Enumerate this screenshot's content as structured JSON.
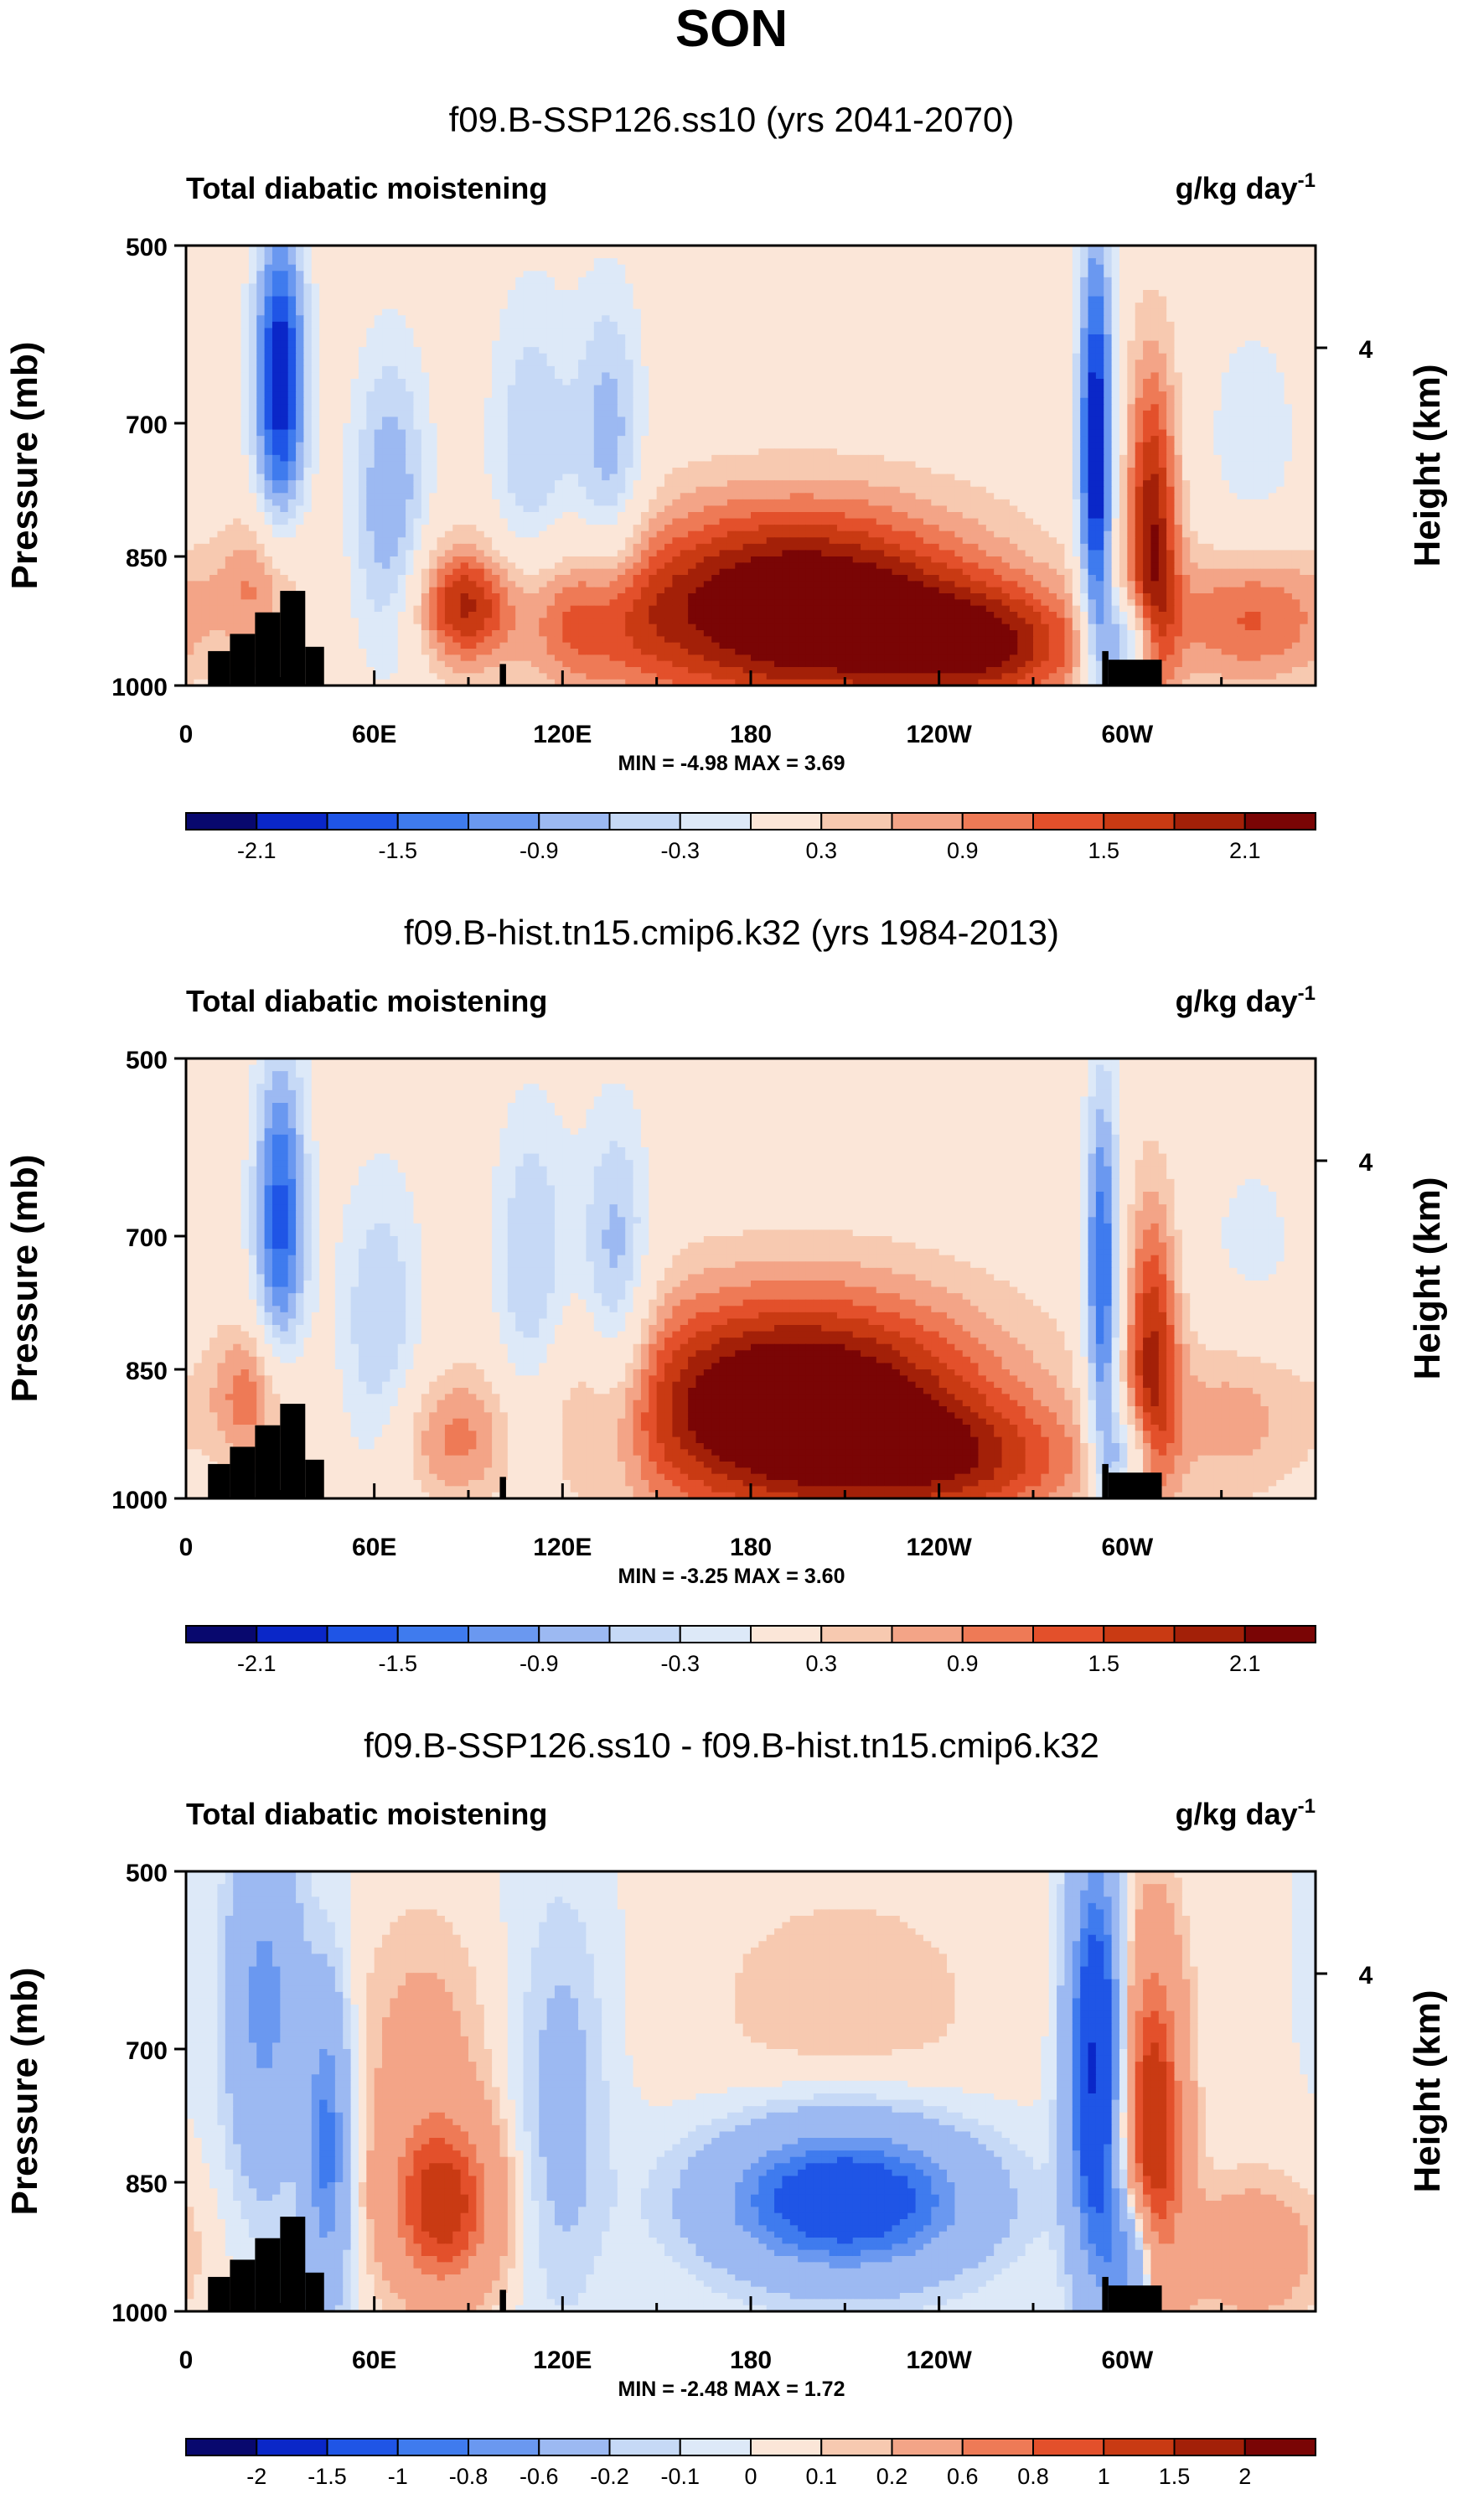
{
  "page_title": "SON",
  "colors": {
    "negative": [
      "#08086e",
      "#0a27c8",
      "#1f55e6",
      "#3f7bee",
      "#6a98f0",
      "#9cb9f2",
      "#c6d9f6",
      "#dde9f8"
    ],
    "positive": [
      "#fbe6d8",
      "#f7c9b0",
      "#f3a487",
      "#ee7a56",
      "#e3502b",
      "#c93a13",
      "#a32008",
      "#7a0505"
    ],
    "topography": "#000000"
  },
  "chart_data": [
    {
      "type": "heatmap",
      "title": "f09.B-SSP126.ss10 (yrs 2041-2070)",
      "left_label": "Total diabatic moistening",
      "units": "g/kg day",
      "units_exponent": "-1",
      "ylabel": "Pressure (mb)",
      "right_ylabel": "Height (km)",
      "right_ticks": [
        "4"
      ],
      "y_ticks": [
        "500",
        "700",
        "850",
        "1000"
      ],
      "x_ticks": [
        "0",
        "60E",
        "120E",
        "180",
        "120W",
        "60W"
      ],
      "min_label": "MIN =",
      "min_value": "-4.98",
      "max_label": "MAX =",
      "max_value": "3.69",
      "colorbar_labels": [
        "-2.1",
        "-1.5",
        "-0.9",
        "-0.3",
        "0.3",
        "0.9",
        "1.5",
        "2.1"
      ],
      "colorbar_bins": 16,
      "features": [
        {
          "lon": 30,
          "p": 650,
          "v": -2.4,
          "sx": 6,
          "sp": 130
        },
        {
          "lon": 25,
          "p": 880,
          "v": 1.0,
          "sx": 10,
          "sp": 60
        },
        {
          "lon": 65,
          "p": 790,
          "v": -1.2,
          "sx": 9,
          "sp": 130
        },
        {
          "lon": 88,
          "p": 905,
          "v": 1.7,
          "sx": 11,
          "sp": 50
        },
        {
          "lon": 110,
          "p": 750,
          "v": -0.9,
          "sx": 10,
          "sp": 150
        },
        {
          "lon": 135,
          "p": 740,
          "v": -1.1,
          "sx": 8,
          "sp": 140
        },
        {
          "lon": 125,
          "p": 930,
          "v": 1.0,
          "sx": 18,
          "sp": 60
        },
        {
          "lon": 195,
          "p": 910,
          "v": 2.8,
          "sx": 42,
          "sp": 85
        },
        {
          "lon": 255,
          "p": 955,
          "v": 1.6,
          "sx": 25,
          "sp": 50
        },
        {
          "lon": 290,
          "p": 740,
          "v": -2.5,
          "sx": 4,
          "sp": 190
        },
        {
          "lon": 308,
          "p": 820,
          "v": 2.0,
          "sx": 6,
          "sp": 140
        },
        {
          "lon": 300,
          "p": 950,
          "v": -1.8,
          "sx": 6,
          "sp": 40
        },
        {
          "lon": 340,
          "p": 920,
          "v": 1.3,
          "sx": 20,
          "sp": 60
        },
        {
          "lon": 340,
          "p": 720,
          "v": -0.5,
          "sx": 12,
          "sp": 110
        }
      ]
    },
    {
      "type": "heatmap",
      "title": "f09.B-hist.tn15.cmip6.k32 (yrs 1984-2013)",
      "left_label": "Total diabatic moistening",
      "units": "g/kg day",
      "units_exponent": "-1",
      "ylabel": "Pressure (mb)",
      "right_ylabel": "Height (km)",
      "right_ticks": [
        "4"
      ],
      "y_ticks": [
        "500",
        "700",
        "850",
        "1000"
      ],
      "x_ticks": [
        "0",
        "60E",
        "120E",
        "180",
        "120W",
        "60W"
      ],
      "min_label": "MIN =",
      "min_value": "-3.25",
      "max_label": "MAX =",
      "max_value": "3.60",
      "colorbar_labels": [
        "-2.1",
        "-1.5",
        "-0.9",
        "-0.3",
        "0.3",
        "0.9",
        "1.5",
        "2.1"
      ],
      "colorbar_bins": 16,
      "features": [
        {
          "lon": 30,
          "p": 680,
          "v": -1.9,
          "sx": 6,
          "sp": 140
        },
        {
          "lon": 22,
          "p": 880,
          "v": 1.2,
          "sx": 10,
          "sp": 60
        },
        {
          "lon": 62,
          "p": 800,
          "v": -0.9,
          "sx": 10,
          "sp": 130
        },
        {
          "lon": 85,
          "p": 930,
          "v": 0.9,
          "sx": 14,
          "sp": 55
        },
        {
          "lon": 110,
          "p": 760,
          "v": -1.0,
          "sx": 9,
          "sp": 150
        },
        {
          "lon": 137,
          "p": 760,
          "v": -1.2,
          "sx": 8,
          "sp": 140
        },
        {
          "lon": 195,
          "p": 895,
          "v": 2.9,
          "sx": 44,
          "sp": 95
        },
        {
          "lon": 250,
          "p": 960,
          "v": 1.1,
          "sx": 30,
          "sp": 50
        },
        {
          "lon": 292,
          "p": 760,
          "v": -1.9,
          "sx": 4,
          "sp": 170
        },
        {
          "lon": 308,
          "p": 830,
          "v": 1.7,
          "sx": 6,
          "sp": 130
        },
        {
          "lon": 300,
          "p": 950,
          "v": -1.3,
          "sx": 6,
          "sp": 40
        },
        {
          "lon": 335,
          "p": 900,
          "v": 0.8,
          "sx": 18,
          "sp": 70
        },
        {
          "lon": 340,
          "p": 720,
          "v": -0.4,
          "sx": 14,
          "sp": 110
        }
      ]
    },
    {
      "type": "heatmap",
      "title": "f09.B-SSP126.ss10 - f09.B-hist.tn15.cmip6.k32",
      "left_label": "Total diabatic moistening",
      "units": "g/kg day",
      "units_exponent": "-1",
      "ylabel": "Pressure (mb)",
      "right_ylabel": "Height (km)",
      "right_ticks": [
        "4"
      ],
      "y_ticks": [
        "500",
        "700",
        "850",
        "1000"
      ],
      "x_ticks": [
        "0",
        "60E",
        "120E",
        "180",
        "120W",
        "60W"
      ],
      "min_label": "MIN =",
      "min_value": "-2.48",
      "max_label": "MAX =",
      "max_value": "1.72",
      "colorbar_labels": [
        "-2",
        "-1.5",
        "-1",
        "-0.8",
        "-0.6",
        "-0.2",
        "-0.1",
        "0",
        "0.1",
        "0.2",
        "0.6",
        "0.8",
        "1",
        "1.5",
        "2"
      ],
      "colorbar_bins": 16,
      "features": [
        {
          "lon": 25,
          "p": 650,
          "v": -0.7,
          "sx": 8,
          "sp": 140
        },
        {
          "lon": 45,
          "p": 810,
          "v": -0.9,
          "sx": 5,
          "sp": 120
        },
        {
          "lon": 82,
          "p": 880,
          "v": 1.1,
          "sx": 12,
          "sp": 70
        },
        {
          "lon": 75,
          "p": 720,
          "v": 0.3,
          "sx": 14,
          "sp": 120
        },
        {
          "lon": 120,
          "p": 760,
          "v": -0.3,
          "sx": 10,
          "sp": 160
        },
        {
          "lon": 210,
          "p": 870,
          "v": -1.4,
          "sx": 28,
          "sp": 60
        },
        {
          "lon": 210,
          "p": 650,
          "v": 0.15,
          "sx": 40,
          "sp": 120
        },
        {
          "lon": 290,
          "p": 720,
          "v": -1.6,
          "sx": 6,
          "sp": 160
        },
        {
          "lon": 308,
          "p": 800,
          "v": 1.3,
          "sx": 7,
          "sp": 150
        },
        {
          "lon": 302,
          "p": 940,
          "v": -1.0,
          "sx": 6,
          "sp": 60
        },
        {
          "lon": 340,
          "p": 930,
          "v": 0.4,
          "sx": 15,
          "sp": 60
        }
      ]
    }
  ]
}
